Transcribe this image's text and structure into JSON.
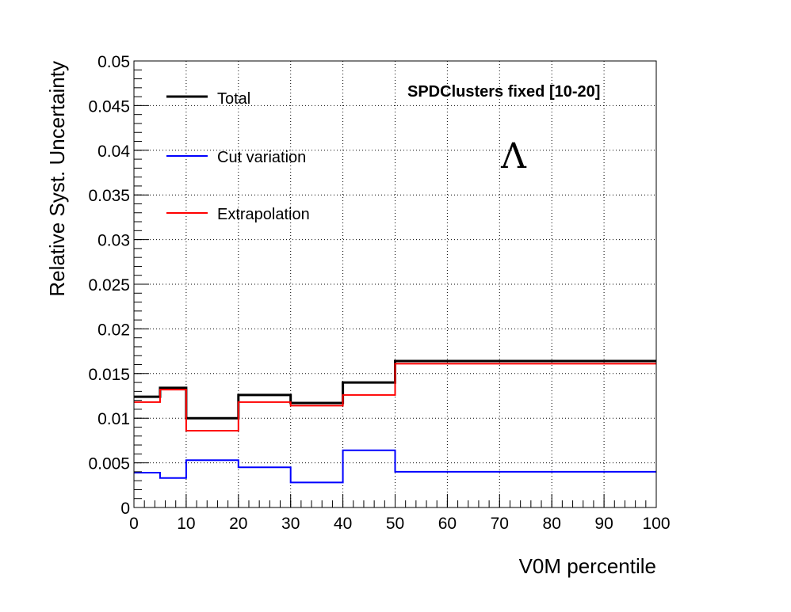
{
  "chart_data": {
    "type": "line",
    "title": "",
    "xlabel": "V0M percentile",
    "ylabel": "Relative Syst. Uncertainty",
    "xlim": [
      0,
      100
    ],
    "ylim": [
      0,
      0.05
    ],
    "grid": true,
    "legend_position": "top-left",
    "x_ticks": [
      "0",
      "10",
      "20",
      "30",
      "40",
      "50",
      "60",
      "70",
      "80",
      "90",
      "100"
    ],
    "y_ticks": [
      "0",
      "0.005",
      "0.01",
      "0.015",
      "0.02",
      "0.025",
      "0.03",
      "0.035",
      "0.04",
      "0.045",
      "0.05"
    ],
    "bin_edges": [
      0,
      5,
      10,
      20,
      30,
      40,
      50,
      100
    ],
    "series": [
      {
        "name": "Total",
        "color": "#000000",
        "line_width": 3,
        "values": [
          0.0124,
          0.0134,
          0.01,
          0.0126,
          0.0117,
          0.014,
          0.0164
        ]
      },
      {
        "name": "Cut variation",
        "color": "#0000ff",
        "line_width": 2,
        "values": [
          0.0039,
          0.0033,
          0.0053,
          0.0045,
          0.0028,
          0.0064,
          0.004
        ]
      },
      {
        "name": "Extrapolation",
        "color": "#ff0000",
        "line_width": 2,
        "values": [
          0.0118,
          0.0132,
          0.0086,
          0.0118,
          0.0114,
          0.0126,
          0.0161
        ]
      }
    ],
    "annotations": {
      "label": "SPDClusters fixed [10-20]",
      "symbol": "Λ"
    }
  }
}
